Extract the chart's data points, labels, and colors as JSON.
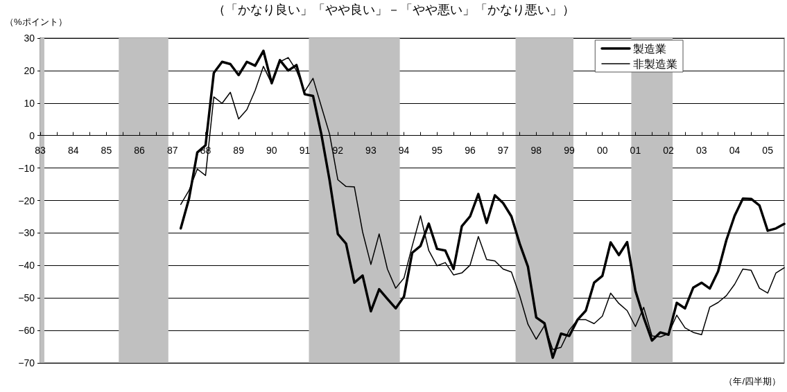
{
  "chart_data": {
    "type": "line",
    "title": "（「かなり良い」「やや良い」－「やや悪い」「かなり悪い」）",
    "ylabel": "（%ポイント）",
    "xlabel": "（年/四半期）",
    "x": [
      1987.25,
      1987.5,
      1987.75,
      1988,
      1988.25,
      1988.5,
      1988.75,
      1989,
      1989.25,
      1989.5,
      1989.75,
      1990,
      1990.25,
      1990.5,
      1990.75,
      1991,
      1991.25,
      1991.5,
      1991.75,
      1992,
      1992.25,
      1992.5,
      1992.75,
      1993,
      1993.25,
      1993.5,
      1993.75,
      1994,
      1994.25,
      1994.5,
      1994.75,
      1995,
      1995.25,
      1995.5,
      1995.75,
      1996,
      1996.25,
      1996.5,
      1996.75,
      1997,
      1997.25,
      1997.5,
      1997.75,
      1998,
      1998.25,
      1998.5,
      1998.75,
      1999,
      1999.25,
      1999.5,
      1999.75,
      2000,
      2000.25,
      2000.5,
      2000.75,
      2001,
      2001.25,
      2001.5,
      2001.75,
      2002,
      2002.25,
      2002.5,
      2002.75,
      2003,
      2003.25,
      2003.5,
      2003.75,
      2004,
      2004.25,
      2004.5,
      2004.75,
      2005,
      2005.25,
      2005.5
    ],
    "series": [
      {
        "name": "製造業",
        "color": "#000000",
        "values": [
          -28.6,
          -19.4,
          -5.2,
          -3,
          19.3,
          22.7,
          22,
          18.6,
          22.7,
          21.5,
          26.1,
          16.1,
          23.2,
          20,
          21.7,
          12.7,
          12.2,
          0.5,
          -13.7,
          -30.3,
          -33.3,
          -45.3,
          -43.1,
          -54.1,
          -47.3,
          -50.3,
          -53.2,
          -49.6,
          -36.1,
          -34,
          -27.1,
          -34.9,
          -35.4,
          -41.1,
          -27.9,
          -24.9,
          -18,
          -26.9,
          -18.4,
          -20.8,
          -24.9,
          -33.3,
          -40.4,
          -56,
          -57.8,
          -68.4,
          -61,
          -61.7,
          -56.7,
          -53.9,
          -45.3,
          -43.2,
          -32.9,
          -36.8,
          -32.8,
          -47.8,
          -56,
          -63.1,
          -60.6,
          -61.3,
          -51.5,
          -53.2,
          -46.8,
          -45.3,
          -47.1,
          -41.8,
          -32.2,
          -24.7,
          -19.4,
          -19.5,
          -21.5,
          -29.3,
          -28.6,
          -27.2
        ]
      },
      {
        "name": "非製造業",
        "color": "#000000",
        "values": [
          -21.2,
          -16.9,
          -10.3,
          -12.3,
          11.9,
          9.9,
          13.3,
          5.1,
          8,
          13.9,
          21.3,
          16,
          22.7,
          24,
          20,
          13.6,
          17.6,
          9,
          0.5,
          -13.6,
          -15.7,
          -15.8,
          -29.7,
          -39.7,
          -30.3,
          -41.1,
          -47,
          -43.9,
          -34,
          -24.7,
          -35.4,
          -40.1,
          -39.1,
          -42.9,
          -42.3,
          -39.9,
          -31.1,
          -38.2,
          -38.6,
          -41.1,
          -42,
          -49.3,
          -58.1,
          -62.7,
          -58.5,
          -65.9,
          -65.2,
          -59.9,
          -56.7,
          -56.7,
          -57.9,
          -55.6,
          -48.5,
          -51.7,
          -53.9,
          -58.8,
          -52.9,
          -61.7,
          -62,
          -61,
          -55.3,
          -59.2,
          -60.6,
          -61.3,
          -52.8,
          -51.4,
          -49.3,
          -45.8,
          -41.1,
          -41.5,
          -47,
          -48.5,
          -42.3,
          -40.7
        ]
      }
    ],
    "xlim": [
      1983,
      2005.5
    ],
    "xticks": [
      {
        "value": 1983,
        "label": "83"
      },
      {
        "value": 1983.5,
        "label": null
      },
      {
        "value": 1984,
        "label": "84"
      },
      {
        "value": 1984.5,
        "label": null
      },
      {
        "value": 1985,
        "label": "85"
      },
      {
        "value": 1985.5,
        "label": null
      },
      {
        "value": 1986,
        "label": "86"
      },
      {
        "value": 1986.5,
        "label": null
      },
      {
        "value": 1987,
        "label": "87"
      },
      {
        "value": 1987.5,
        "label": null
      },
      {
        "value": 1988,
        "label": "88"
      },
      {
        "value": 1988.5,
        "label": null
      },
      {
        "value": 1989,
        "label": "89"
      },
      {
        "value": 1989.5,
        "label": null
      },
      {
        "value": 1990,
        "label": "90"
      },
      {
        "value": 1990.5,
        "label": null
      },
      {
        "value": 1991,
        "label": "91"
      },
      {
        "value": 1991.5,
        "label": null
      },
      {
        "value": 1992,
        "label": "92"
      },
      {
        "value": 1992.5,
        "label": null
      },
      {
        "value": 1993,
        "label": "93"
      },
      {
        "value": 1993.5,
        "label": null
      },
      {
        "value": 1994,
        "label": "94"
      },
      {
        "value": 1994.5,
        "label": null
      },
      {
        "value": 1995,
        "label": "95"
      },
      {
        "value": 1995.5,
        "label": null
      },
      {
        "value": 1996,
        "label": "96"
      },
      {
        "value": 1996.5,
        "label": null
      },
      {
        "value": 1997,
        "label": "97"
      },
      {
        "value": 1997.5,
        "label": null
      },
      {
        "value": 1998,
        "label": "98"
      },
      {
        "value": 1998.5,
        "label": null
      },
      {
        "value": 1999,
        "label": "99"
      },
      {
        "value": 1999.5,
        "label": null
      },
      {
        "value": 2000,
        "label": "00"
      },
      {
        "value": 2000.5,
        "label": null
      },
      {
        "value": 2001,
        "label": "01"
      },
      {
        "value": 2001.5,
        "label": null
      },
      {
        "value": 2002,
        "label": "02"
      },
      {
        "value": 2002.5,
        "label": null
      },
      {
        "value": 2003,
        "label": "03"
      },
      {
        "value": 2003.5,
        "label": null
      },
      {
        "value": 2004,
        "label": "04"
      },
      {
        "value": 2004.5,
        "label": null
      },
      {
        "value": 2005,
        "label": "05"
      }
    ],
    "ylim": [
      -70,
      30
    ],
    "yticks": [
      {
        "value": -70,
        "label": "−70"
      },
      {
        "value": -60,
        "label": "−60"
      },
      {
        "value": -50,
        "label": "−50"
      },
      {
        "value": -40,
        "label": "−40"
      },
      {
        "value": -30,
        "label": "−30"
      },
      {
        "value": -20,
        "label": "−20"
      },
      {
        "value": -10,
        "label": "−10"
      },
      0,
      10,
      20,
      30
    ],
    "bands": [
      {
        "axis": "x",
        "from": 1983,
        "to": 1983.125,
        "color": "#c0c0c0"
      },
      {
        "axis": "x",
        "from": 1985.375,
        "to": 1986.875,
        "color": "#c0c0c0"
      },
      {
        "axis": "x",
        "from": 1991.125,
        "to": 1993.875,
        "color": "#c0c0c0"
      },
      {
        "axis": "x",
        "from": 1997.375,
        "to": 1999.125,
        "color": "#c0c0c0"
      },
      {
        "axis": "x",
        "from": 2000.875,
        "to": 2002.125,
        "color": "#c0c0c0"
      }
    ],
    "grid": "y",
    "legend": "top right",
    "marker": "none",
    "line_style": "solid"
  }
}
